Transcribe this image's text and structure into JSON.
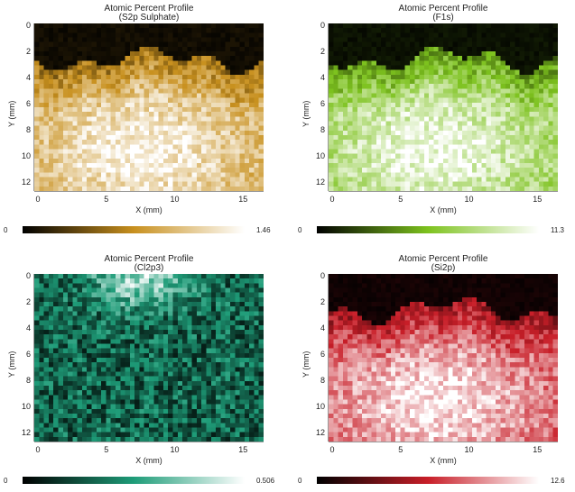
{
  "chart_data": [
    {
      "type": "heatmap",
      "title": "Atomic Percent Profile",
      "subtitle": "(S2p Sulphate)",
      "xlabel": "X (mm)",
      "ylabel": "Y (mm)",
      "xlim": [
        0,
        16.5
      ],
      "ylim": [
        0,
        12.3
      ],
      "xticks": [
        "0",
        "5",
        "10",
        "15"
      ],
      "yticks": [
        "0",
        "2",
        "4",
        "6",
        "8",
        "10",
        "12"
      ],
      "colorbar": {
        "min": "0",
        "max": "1.46"
      },
      "colors": [
        "#000000",
        "#c8901e",
        "#ffffff"
      ],
      "pattern": "dark-top"
    },
    {
      "type": "heatmap",
      "title": "Atomic Percent Profile",
      "subtitle": "(F1s)",
      "xlabel": "X (mm)",
      "ylabel": "Y (mm)",
      "xlim": [
        0,
        16.5
      ],
      "ylim": [
        0,
        12.3
      ],
      "xticks": [
        "0",
        "5",
        "10",
        "15"
      ],
      "yticks": [
        "0",
        "2",
        "4",
        "6",
        "8",
        "10",
        "12"
      ],
      "colorbar": {
        "min": "0",
        "max": "11.3"
      },
      "colors": [
        "#000000",
        "#7dc21e",
        "#ffffff"
      ],
      "pattern": "dark-top"
    },
    {
      "type": "heatmap",
      "title": "Atomic Percent Profile",
      "subtitle": "(Cl2p3)",
      "xlabel": "X (mm)",
      "ylabel": "Y (mm)",
      "xlim": [
        0,
        16.5
      ],
      "ylim": [
        0,
        12.3
      ],
      "xticks": [
        "0",
        "5",
        "10",
        "15"
      ],
      "yticks": [
        "0",
        "2",
        "4",
        "6",
        "8",
        "10",
        "12"
      ],
      "colorbar": {
        "min": "0",
        "max": "0.506"
      },
      "colors": [
        "#000000",
        "#1e9c78",
        "#ffffff"
      ],
      "pattern": "noise"
    },
    {
      "type": "heatmap",
      "title": "Atomic Percent Profile",
      "subtitle": "(Si2p)",
      "xlabel": "X (mm)",
      "ylabel": "Y (mm)",
      "xlim": [
        0,
        16.5
      ],
      "ylim": [
        0,
        12.3
      ],
      "xticks": [
        "0",
        "5",
        "10",
        "15"
      ],
      "yticks": [
        "0",
        "2",
        "4",
        "6",
        "8",
        "10",
        "12"
      ],
      "colorbar": {
        "min": "0",
        "max": "12.6"
      },
      "colors": [
        "#000000",
        "#c81e28",
        "#ffffff"
      ],
      "pattern": "dark-top"
    }
  ]
}
